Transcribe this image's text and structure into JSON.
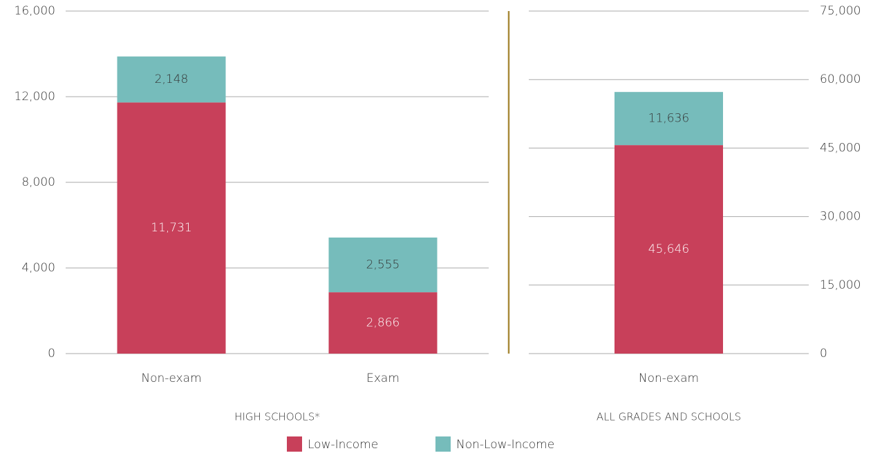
{
  "chart_data": [
    {
      "type": "stacked_bar",
      "xlabel": "HIGH SCHOOLS*",
      "categories": [
        "Non-exam",
        "Exam"
      ],
      "series": [
        {
          "name": "Low-Income",
          "color": "#c8405a",
          "values": [
            11731,
            2866
          ],
          "value_labels": [
            "11,731",
            "2,866"
          ]
        },
        {
          "name": "Non-Low-Income",
          "color": "#76bcbb",
          "values": [
            2148,
            2555
          ],
          "value_labels": [
            "2,148",
            "2,555"
          ]
        }
      ],
      "ylim": [
        0,
        16000
      ],
      "yticks": [
        0,
        {
          "value": 4000,
          "label": "4,000"
        },
        {
          "value": 8000,
          "label": "8,000"
        },
        {
          "value": 12000,
          "label": "12,000"
        },
        {
          "value": 16000,
          "label": "16,000"
        }
      ],
      "y_axis_position": "left",
      "grid": true
    },
    {
      "type": "stacked_bar",
      "xlabel": "ALL GRADES AND SCHOOLS",
      "categories": [
        "Non-exam"
      ],
      "series": [
        {
          "name": "Low-Income",
          "color": "#c8405a",
          "values": [
            45646
          ],
          "value_labels": [
            "45,646"
          ]
        },
        {
          "name": "Non-Low-Income",
          "color": "#76bcbb",
          "values": [
            11636
          ],
          "value_labels": [
            "11,636"
          ]
        }
      ],
      "ylim": [
        0,
        75000
      ],
      "yticks": [
        0,
        {
          "value": 15000,
          "label": "15,000"
        },
        {
          "value": 30000,
          "label": "30,000"
        },
        {
          "value": 45000,
          "label": "45,000"
        },
        {
          "value": 60000,
          "label": "60,000"
        },
        {
          "value": 75000,
          "label": "75,000"
        }
      ],
      "y_axis_position": "right",
      "grid": true
    }
  ]
}
